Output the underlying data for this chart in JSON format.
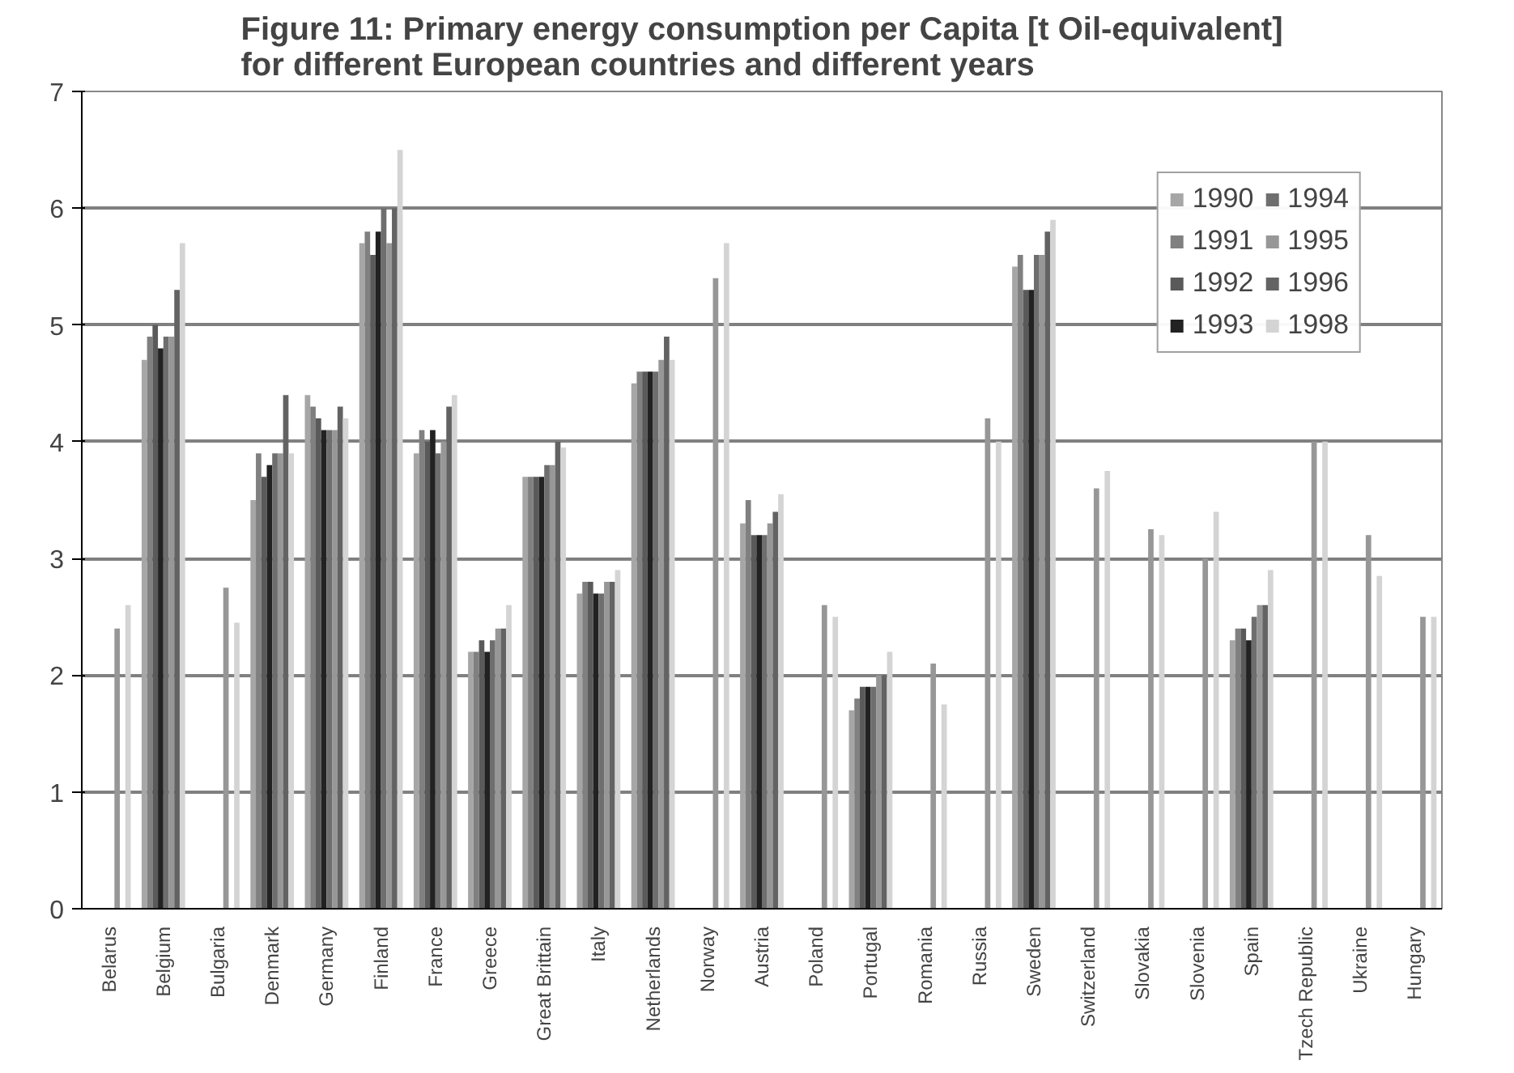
{
  "chart_data": {
    "type": "bar",
    "title": "Figure 11: Primary energy consumption per Capita [t Oil-equivalent]\nfor different European countries and different years",
    "categories": [
      "Belarus",
      "Belgium",
      "Bulgaria",
      "Denmark",
      "Germany",
      "Finland",
      "France",
      "Greece",
      "Great Brittain",
      "Italy",
      "Netherlands",
      "Norway",
      "Austria",
      "Poland",
      "Portugal",
      "Romania",
      "Russia",
      "Sweden",
      "Switzerland",
      "Slovakia",
      "Slovenia",
      "Spain",
      "Tzech Republic",
      "Ukraine",
      "Hungary"
    ],
    "series": [
      {
        "name": "1990",
        "color": "#a6a6a6",
        "values": [
          null,
          4.7,
          null,
          3.5,
          4.4,
          5.7,
          3.9,
          2.2,
          3.7,
          2.7,
          4.5,
          null,
          3.3,
          null,
          1.7,
          null,
          null,
          5.5,
          null,
          null,
          null,
          2.3,
          null,
          null,
          null
        ]
      },
      {
        "name": "1991",
        "color": "#808080",
        "values": [
          null,
          4.9,
          null,
          3.9,
          4.3,
          5.8,
          4.1,
          2.2,
          3.7,
          2.8,
          4.6,
          null,
          3.5,
          null,
          1.8,
          null,
          null,
          5.6,
          null,
          null,
          null,
          2.4,
          null,
          null,
          null
        ]
      },
      {
        "name": "1992",
        "color": "#5a5a5a",
        "values": [
          null,
          5.0,
          null,
          3.7,
          4.2,
          5.6,
          4.0,
          2.3,
          3.7,
          2.8,
          4.6,
          null,
          3.2,
          null,
          1.9,
          null,
          null,
          5.3,
          null,
          null,
          null,
          2.4,
          null,
          null,
          null
        ]
      },
      {
        "name": "1993",
        "color": "#222222",
        "values": [
          null,
          4.8,
          null,
          3.8,
          4.1,
          5.8,
          4.1,
          2.2,
          3.7,
          2.7,
          4.6,
          null,
          3.2,
          null,
          1.9,
          null,
          null,
          5.3,
          null,
          null,
          null,
          2.3,
          null,
          null,
          null
        ]
      },
      {
        "name": "1994",
        "color": "#6e6e6e",
        "values": [
          null,
          4.9,
          null,
          3.9,
          4.1,
          6.0,
          3.9,
          2.3,
          3.8,
          2.7,
          4.6,
          null,
          3.2,
          null,
          1.9,
          null,
          null,
          5.6,
          null,
          null,
          null,
          2.5,
          null,
          null,
          null
        ]
      },
      {
        "name": "1995",
        "color": "#979797",
        "values": [
          2.4,
          4.9,
          2.75,
          3.9,
          4.1,
          5.7,
          4.0,
          2.4,
          3.8,
          2.8,
          4.7,
          5.4,
          3.3,
          2.6,
          2.0,
          2.1,
          4.2,
          5.6,
          3.6,
          3.25,
          3.0,
          2.6,
          4.0,
          3.2,
          2.5
        ]
      },
      {
        "name": "1996",
        "color": "#636363",
        "values": [
          null,
          5.3,
          null,
          4.4,
          4.3,
          6.0,
          4.3,
          2.4,
          4.0,
          2.8,
          4.9,
          null,
          3.4,
          null,
          2.0,
          null,
          null,
          5.8,
          null,
          null,
          null,
          2.6,
          null,
          null,
          null
        ]
      },
      {
        "name": "1998",
        "color": "#d4d4d4",
        "values": [
          2.6,
          5.7,
          2.45,
          3.9,
          4.2,
          6.5,
          4.4,
          2.6,
          3.95,
          2.9,
          4.7,
          5.7,
          3.55,
          2.5,
          2.2,
          1.75,
          4.0,
          5.9,
          3.75,
          3.2,
          3.4,
          2.9,
          4.0,
          2.85,
          2.5
        ]
      }
    ],
    "ylim": [
      0,
      7
    ],
    "yticks": [
      0,
      1,
      2,
      3,
      4,
      5,
      6,
      7
    ],
    "grid": "y",
    "legend": "top right"
  }
}
